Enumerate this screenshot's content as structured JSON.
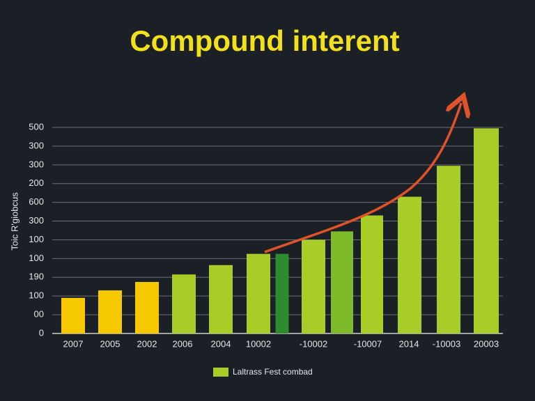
{
  "chart_data": {
    "type": "bar",
    "title": "Compound interent",
    "y_label": "Toic R'giobcus",
    "legend": "Laltrass Fest combad",
    "legend_color": "#a8cc28",
    "categories": [
      "2007",
      "2005",
      "2002",
      "2006",
      "2004",
      "10002",
      null,
      "-10002",
      null,
      "-10007",
      "2014",
      "-10003",
      "20003"
    ],
    "values": [
      1.9,
      2.3,
      2.75,
      3.15,
      3.65,
      4.25,
      4.25,
      5.0,
      5.45,
      6.3,
      7.3,
      8.95,
      10.95
    ],
    "colors": [
      "#f5c800",
      "#f5c800",
      "#f5c800",
      "#a8cc28",
      "#a8cc28",
      "#a8cc28",
      "#2e8b2e",
      "#a8cc28",
      "#7dbb2a",
      "#a8cc28",
      "#a8cc28",
      "#a8cc28",
      "#a8cc28"
    ],
    "ylim": [
      0,
      11
    ],
    "yticks": [
      0,
      {
        "value": 1,
        "label": "00"
      },
      {
        "value": 2,
        "label": "100"
      },
      {
        "value": 3,
        "label": "190"
      },
      {
        "value": 4,
        "label": "100"
      },
      {
        "value": 5,
        "label": "100"
      },
      {
        "value": 6,
        "label": "300"
      },
      {
        "value": 7,
        "label": "600"
      },
      {
        "value": 8,
        "label": "200"
      },
      {
        "value": 9,
        "label": "300"
      },
      {
        "value": 10,
        "label": "300"
      },
      {
        "value": 11,
        "label": "500"
      }
    ],
    "grid": true
  }
}
